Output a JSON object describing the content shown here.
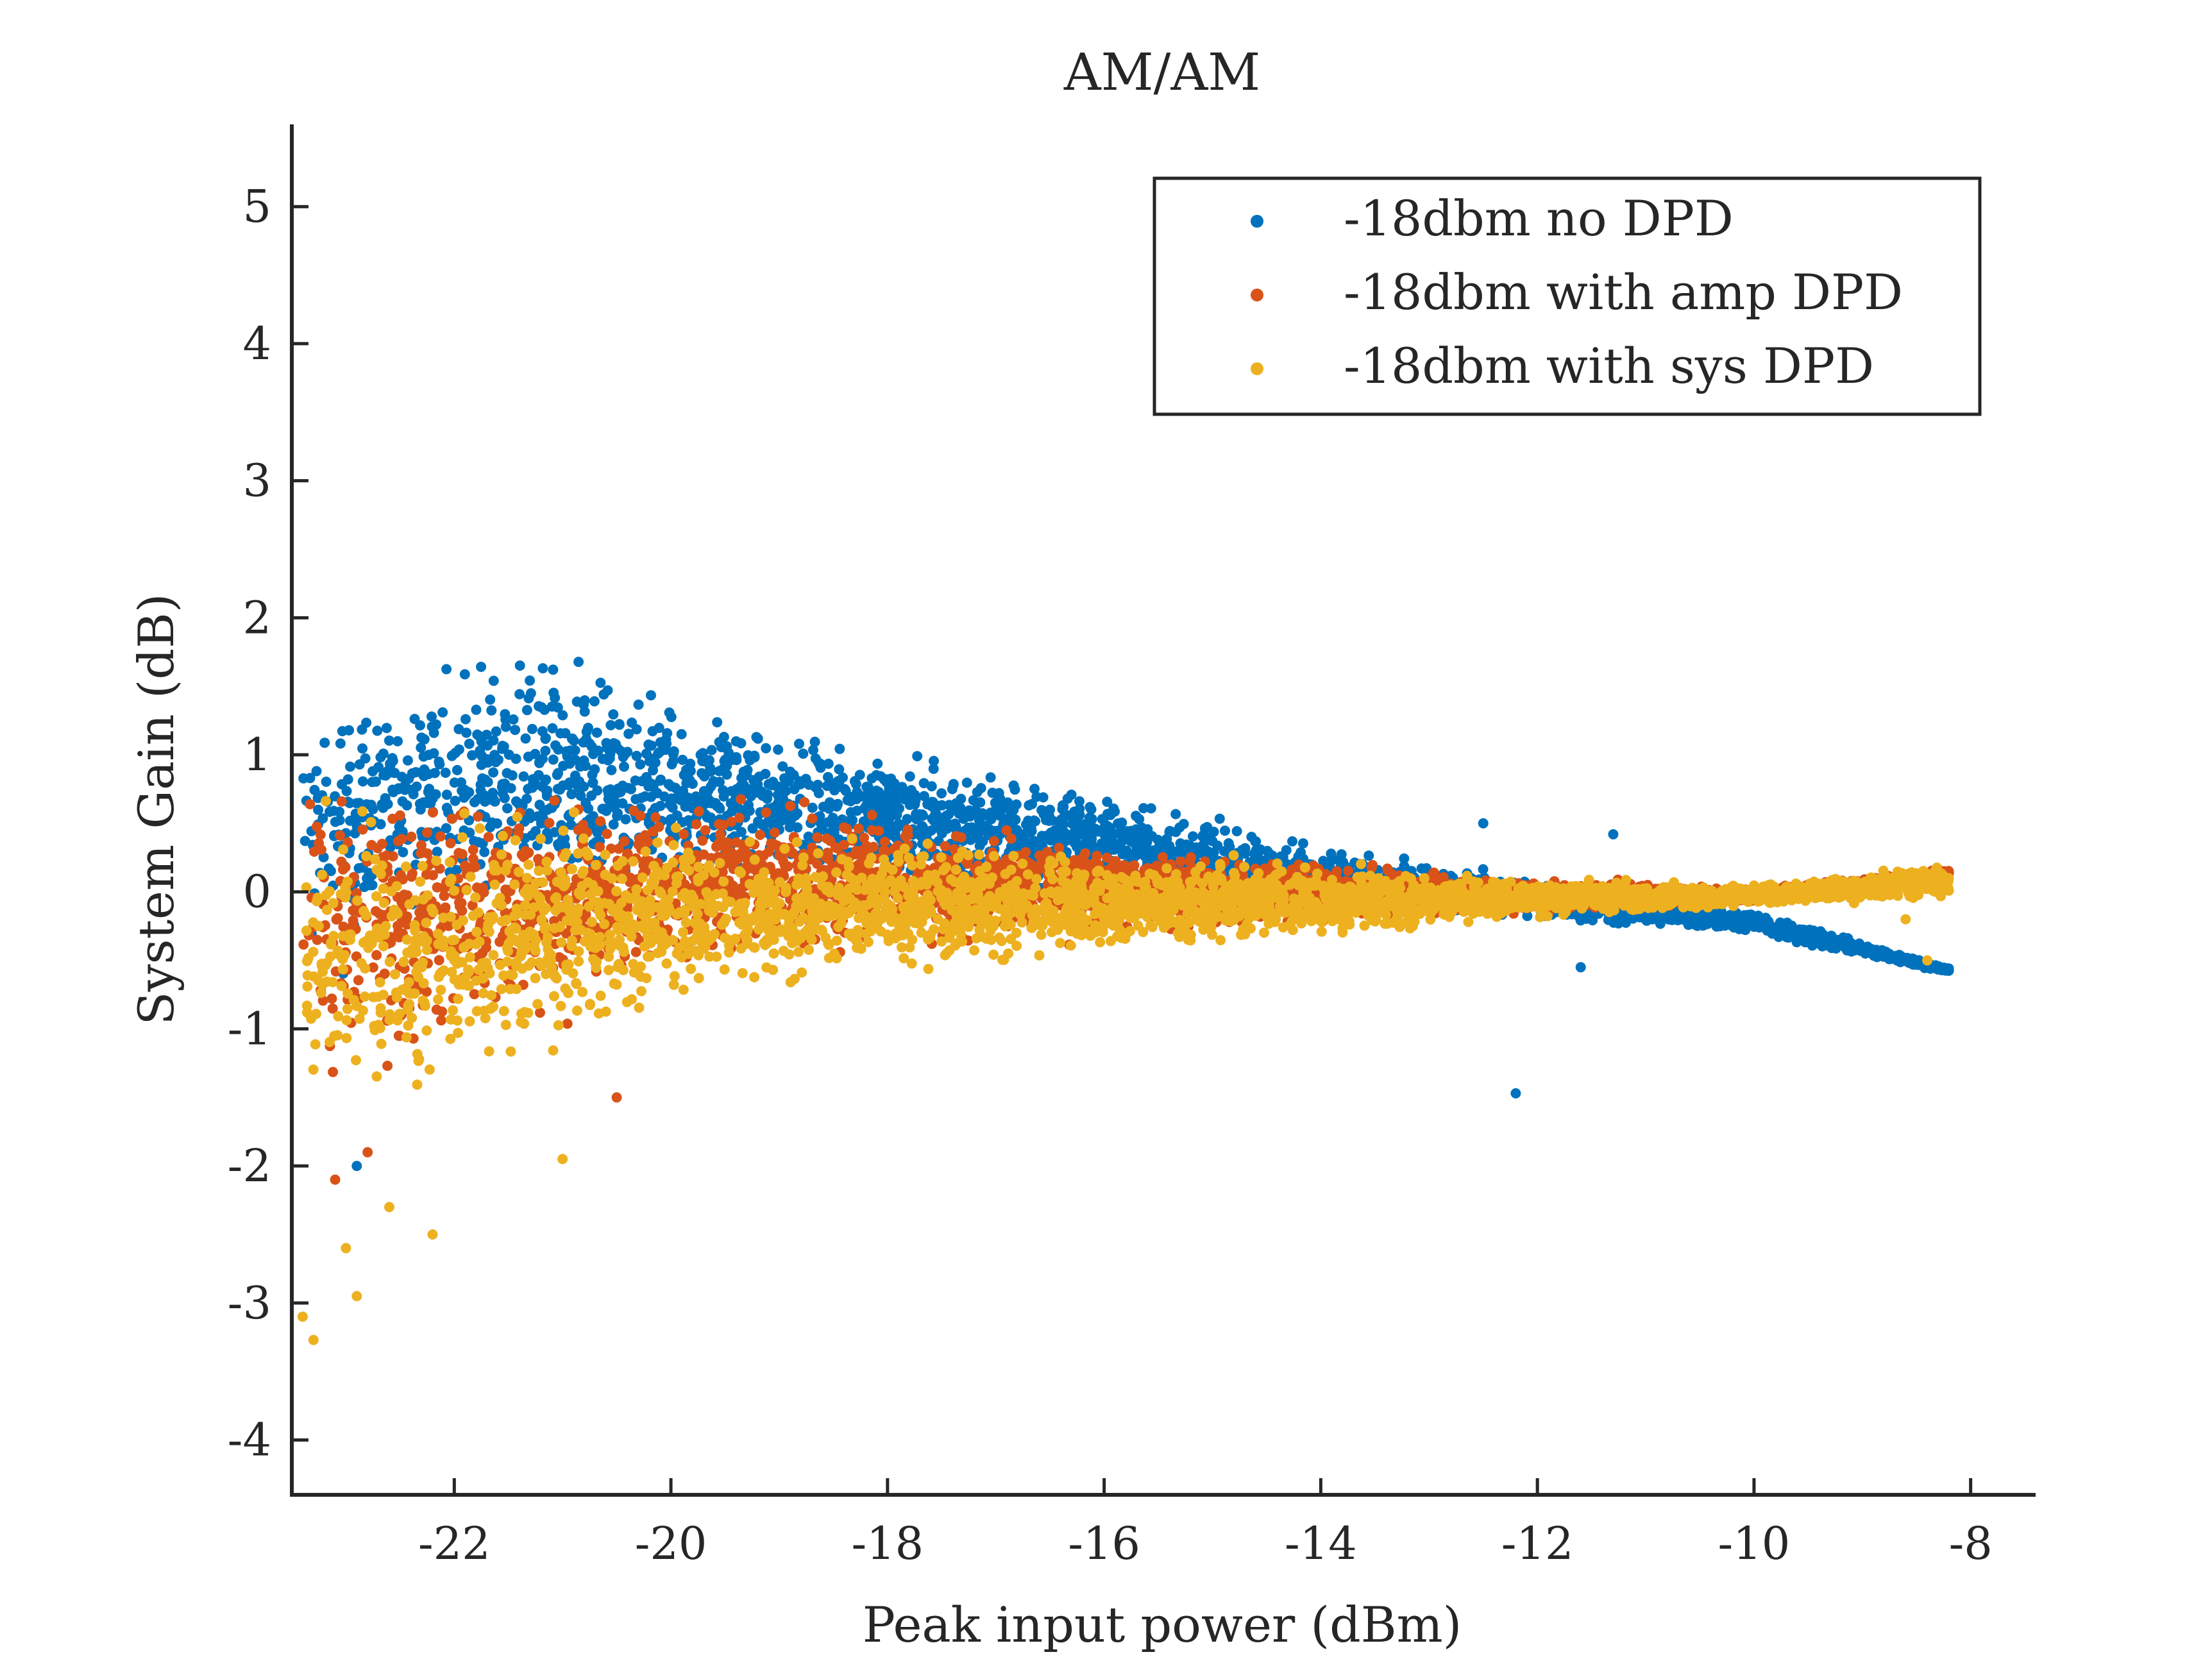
{
  "chart_data": {
    "type": "scatter",
    "title": "AM/AM",
    "xlabel": "Peak input power (dBm)",
    "ylabel": "System Gain (dB)",
    "xlim": [
      -23.5,
      -7.4
    ],
    "ylim": [
      -4.4,
      5.6
    ],
    "xticks": [
      -22,
      -20,
      -18,
      -16,
      -14,
      -12,
      -10,
      -8
    ],
    "yticks": [
      -4,
      -3,
      -2,
      -1,
      0,
      1,
      2,
      3,
      4,
      5
    ],
    "xtick_labels": [
      "-22",
      "-20",
      "-18",
      "-16",
      "-14",
      "-12",
      "-10",
      "-8"
    ],
    "ytick_labels": [
      "-4",
      "-3",
      "-2",
      "-1",
      "0",
      "1",
      "2",
      "3",
      "4",
      "5"
    ],
    "grid": false,
    "legend_position": "top-right",
    "colors": [
      "#0072BD",
      "#D95319",
      "#EDB120"
    ],
    "series": [
      {
        "name": "-18dbm no DPD",
        "color": "#0072BD",
        "x_range": [
          -23.4,
          -8.2
        ],
        "band": [
          {
            "x": -23.4,
            "lo": -1.0,
            "hi": 1.9
          },
          {
            "x": -22,
            "lo": -0.6,
            "hi": 2.15
          },
          {
            "x": -20,
            "lo": -0.3,
            "hi": 1.8
          },
          {
            "x": -18,
            "lo": -0.2,
            "hi": 1.3
          },
          {
            "x": -16,
            "lo": -0.2,
            "hi": 0.9
          },
          {
            "x": -14,
            "lo": -0.25,
            "hi": 0.45
          },
          {
            "x": -12,
            "lo": -0.25,
            "hi": 0.15
          },
          {
            "x": -10,
            "lo": -0.35,
            "hi": -0.1
          },
          {
            "x": -8.2,
            "lo": -0.6,
            "hi": -0.55
          }
        ],
        "outliers": [
          [
            -12.2,
            -1.47
          ],
          [
            -11.3,
            0.42
          ],
          [
            -11.6,
            -0.55
          ],
          [
            -12.5,
            0.5
          ],
          [
            -22.9,
            -2.0
          ]
        ]
      },
      {
        "name": "-18dbm with amp DPD",
        "color": "#D95319",
        "x_range": [
          -23.4,
          -8.2
        ],
        "band": [
          {
            "x": -23.4,
            "lo": -1.8,
            "hi": 1.4
          },
          {
            "x": -22,
            "lo": -1.5,
            "hi": 1.2
          },
          {
            "x": -20,
            "lo": -0.9,
            "hi": 1.0
          },
          {
            "x": -18,
            "lo": -0.6,
            "hi": 0.75
          },
          {
            "x": -16,
            "lo": -0.45,
            "hi": 0.5
          },
          {
            "x": -14,
            "lo": -0.3,
            "hi": 0.3
          },
          {
            "x": -12,
            "lo": -0.2,
            "hi": 0.15
          },
          {
            "x": -10,
            "lo": -0.1,
            "hi": 0.05
          },
          {
            "x": -8.2,
            "lo": 0.1,
            "hi": 0.18
          }
        ],
        "outliers": [
          [
            -22.8,
            -1.9
          ],
          [
            -23.1,
            -2.1
          ],
          [
            -20.5,
            -1.5
          ]
        ]
      },
      {
        "name": "-18dbm with sys DPD",
        "color": "#EDB120",
        "x_range": [
          -23.4,
          -8.2
        ],
        "band": [
          {
            "x": -23.4,
            "lo": -2.3,
            "hi": 1.3
          },
          {
            "x": -22,
            "lo": -1.9,
            "hi": 1.1
          },
          {
            "x": -20,
            "lo": -1.1,
            "hi": 0.8
          },
          {
            "x": -18,
            "lo": -0.8,
            "hi": 0.6
          },
          {
            "x": -16,
            "lo": -0.6,
            "hi": 0.45
          },
          {
            "x": -14,
            "lo": -0.45,
            "hi": 0.3
          },
          {
            "x": -12,
            "lo": -0.25,
            "hi": 0.15
          },
          {
            "x": -10,
            "lo": -0.15,
            "hi": 0.1
          },
          {
            "x": -8.2,
            "lo": -0.1,
            "hi": 0.25
          }
        ],
        "outliers": [
          [
            -23.3,
            -3.27
          ],
          [
            -22.9,
            -2.95
          ],
          [
            -23.0,
            -2.6
          ],
          [
            -22.2,
            -2.5
          ],
          [
            -23.4,
            -3.1
          ],
          [
            -22.6,
            -2.3
          ],
          [
            -21.0,
            -1.95
          ],
          [
            -8.4,
            -0.5
          ],
          [
            -8.6,
            -0.2
          ]
        ]
      }
    ]
  }
}
